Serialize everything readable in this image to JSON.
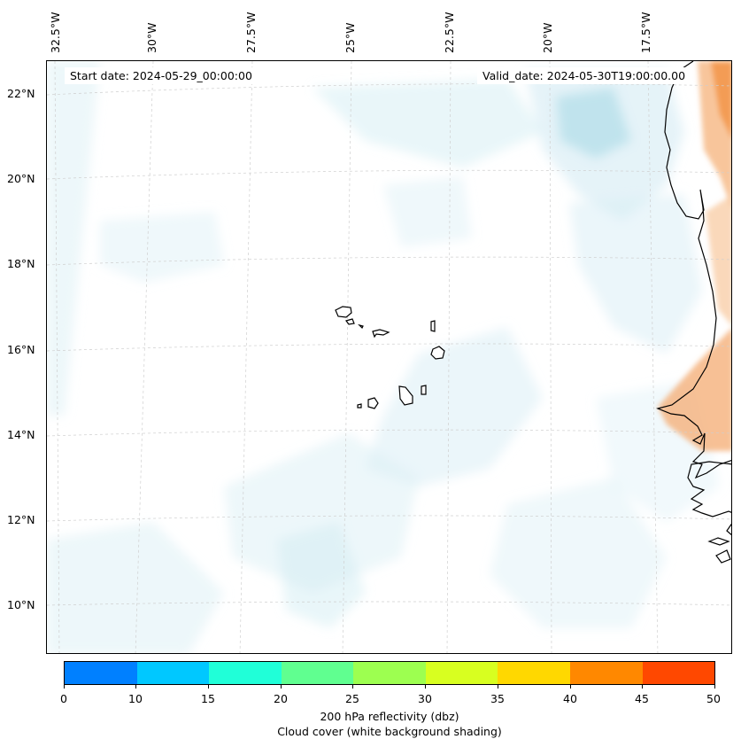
{
  "map": {
    "start_date": "Start date: 2024-05-29_00:00:00",
    "valid_date": "Valid_date: 2024-05-30T19:00:00.00",
    "lon_labels": [
      "32.5°W",
      "30°W",
      "27.5°W",
      "25°W",
      "22.5°W",
      "20°W",
      "17.5°W"
    ],
    "lat_labels": [
      "22°N",
      "20°N",
      "18°N",
      "16°N",
      "14°N",
      "12°N",
      "10°N"
    ],
    "features": [
      "Cape Verde islands",
      "West African coastline",
      "graticule",
      "cloud cover shading",
      "reflectivity shading"
    ]
  },
  "colorbar": {
    "ticks": [
      "0",
      "10",
      "15",
      "20",
      "25",
      "30",
      "35",
      "40",
      "45",
      "50"
    ],
    "colors": [
      "#0080ff",
      "#00c8ff",
      "#20ffd8",
      "#60ff90",
      "#9dff50",
      "#d8ff20",
      "#ffd800",
      "#ff8800",
      "#ff4800"
    ],
    "label_line1": "200 hPa reflectivity (dbz)",
    "label_line2": "Cloud cover (white background shading)"
  },
  "colors": {
    "land_shade": "#f4a15b",
    "cloud_shade": "#bfe3ee",
    "coastline": "#000000",
    "grid": "#c8c8c8"
  }
}
